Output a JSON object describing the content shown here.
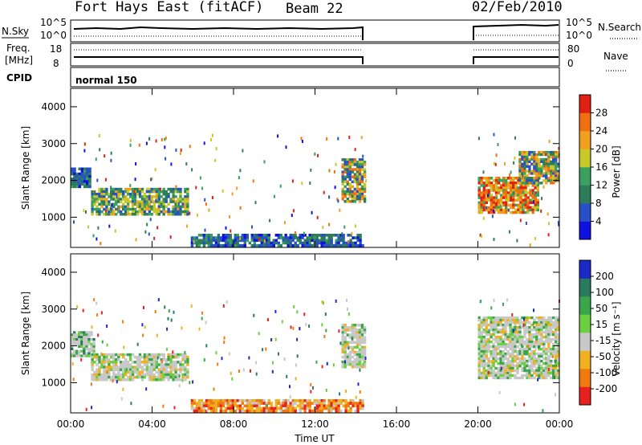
{
  "header": {
    "station": "Fort Hays East (fitACF)",
    "beam": "Beam 22",
    "date": "02/Feb/2010"
  },
  "strips": {
    "nsky_label": "N.Sky",
    "nsearch_label": "N.Search",
    "freq_label_1": "Freq.",
    "freq_label_2": "[MHz]",
    "nave_label": "Nave",
    "cpid_label": "CPID",
    "cpid_value": "normal 150",
    "noise_left_ticks": [
      "10^5",
      "10^0"
    ],
    "noise_right_ticks": [
      "10^5",
      "10^0"
    ],
    "freq_ticks": [
      "18",
      "8"
    ],
    "nave_ticks": [
      "80",
      "0"
    ]
  },
  "colors": {
    "power_scale": [
      "#1010e0",
      "#2850c8",
      "#2e7d5a",
      "#3aa060",
      "#c8c828",
      "#f0a020",
      "#f07010",
      "#e02010"
    ],
    "velocity_scale": [
      "#1a2ac8",
      "#2a7a60",
      "#3aa64a",
      "#6ad040",
      "#c8c8c8",
      "#f0b020",
      "#f07a10",
      "#e82020"
    ]
  },
  "chart_data": [
    {
      "type": "heatmap",
      "name": "power",
      "xlabel": "",
      "ylabel": "Slant Range [km]",
      "ylim": [
        180,
        4500
      ],
      "xlim": [
        "00:00",
        "24:00"
      ],
      "y_ticks": [
        "1000",
        "2000",
        "3000",
        "4000"
      ],
      "colorbar": {
        "label": "Power [dB]",
        "ticks": [
          "4",
          "8",
          "12",
          "16",
          "20",
          "24",
          "28"
        ],
        "range": [
          0,
          32
        ]
      },
      "data_gaps_hours": [
        [
          14.5,
          20.0
        ]
      ],
      "regions": [
        {
          "t_start": 0.0,
          "t_end": 1.0,
          "r_start": 1800,
          "r_end": 2350,
          "level": "blue-green"
        },
        {
          "t_start": 1.0,
          "t_end": 5.8,
          "r_start": 1050,
          "r_end": 1800,
          "level": "green-yellow"
        },
        {
          "t_start": 5.9,
          "t_end": 14.4,
          "r_start": 200,
          "r_end": 550,
          "level": "blue-green"
        },
        {
          "t_start": 13.3,
          "t_end": 14.5,
          "r_start": 1400,
          "r_end": 2600,
          "level": "green-orange"
        },
        {
          "t_start": 20.0,
          "t_end": 23.0,
          "r_start": 1100,
          "r_end": 2100,
          "level": "orange-red"
        },
        {
          "t_start": 22.0,
          "t_end": 24.0,
          "r_start": 1900,
          "r_end": 2800,
          "level": "green-orange"
        }
      ]
    },
    {
      "type": "heatmap",
      "name": "velocity",
      "xlabel": "Time UT",
      "ylabel": "Slant Range [km]",
      "ylim": [
        180,
        4500
      ],
      "xlim": [
        "00:00",
        "24:00"
      ],
      "x_ticks": [
        "00:00",
        "04:00",
        "08:00",
        "12:00",
        "16:00",
        "20:00",
        "00:00"
      ],
      "y_ticks": [
        "1000",
        "2000",
        "3000",
        "4000"
      ],
      "colorbar": {
        "label": "Velocity [m s⁻¹]",
        "ticks": [
          "200",
          "100",
          "50",
          "15",
          "-15",
          "-50",
          "-100",
          "-200"
        ],
        "range": [
          -250,
          250
        ]
      },
      "data_gaps_hours": [
        [
          14.5,
          20.0
        ]
      ],
      "regions": [
        {
          "t_start": 0.0,
          "t_end": 1.2,
          "r_start": 1700,
          "r_end": 2400,
          "level": "grey-green"
        },
        {
          "t_start": 1.0,
          "t_end": 5.8,
          "r_start": 1050,
          "r_end": 1800,
          "level": "grey"
        },
        {
          "t_start": 5.9,
          "t_end": 14.4,
          "r_start": 200,
          "r_end": 550,
          "level": "orange"
        },
        {
          "t_start": 13.3,
          "t_end": 14.5,
          "r_start": 1400,
          "r_end": 2600,
          "level": "grey"
        },
        {
          "t_start": 20.0,
          "t_end": 24.0,
          "r_start": 1100,
          "r_end": 2800,
          "level": "grey"
        }
      ]
    }
  ]
}
